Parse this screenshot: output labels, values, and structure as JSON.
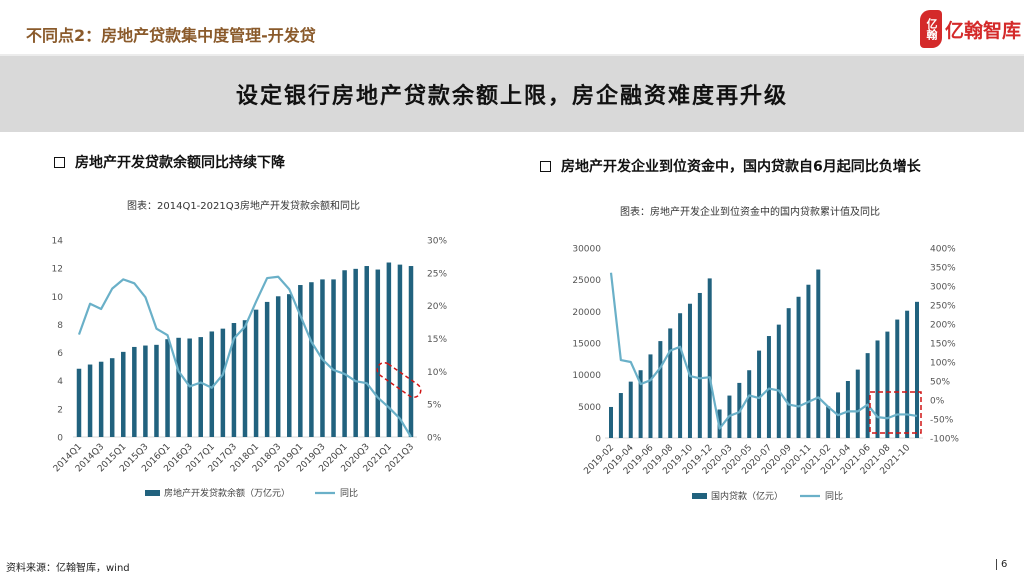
{
  "header": {
    "title": "不同点2：房地产贷款集中度管理-开发贷",
    "logo_text": "亿翰智库",
    "logo_mark": "亿翰"
  },
  "banner": {
    "headline": "设定银行房地产贷款余额上限，房企融资难度再升级"
  },
  "colors": {
    "bar": "#21627e",
    "line": "#6ab0c8",
    "highlight": "#d01515",
    "title": "#8a5a2b"
  },
  "left_section": {
    "heading": "房地产开发贷款余额同比持续下降",
    "caption": "图表：2014Q1-2021Q3房地产开发贷款余额和同比"
  },
  "right_section": {
    "heading": "房地产开发企业到位资金中，国内贷款自6月起同比负增长",
    "caption": "图表：房地产开发企业到位资金中的国内贷款累计值及同比"
  },
  "footer": {
    "source": "资料来源：亿翰智库，wind",
    "page": "6"
  },
  "chart_data": [
    {
      "type": "bar+line",
      "categories": [
        "2014Q1",
        "2014Q2",
        "2014Q3",
        "2014Q4",
        "2015Q1",
        "2015Q2",
        "2015Q3",
        "2015Q4",
        "2016Q1",
        "2016Q2",
        "2016Q3",
        "2016Q4",
        "2017Q1",
        "2017Q2",
        "2017Q3",
        "2017Q4",
        "2018Q1",
        "2018Q2",
        "2018Q3",
        "2018Q4",
        "2019Q1",
        "2019Q2",
        "2019Q3",
        "2019Q4",
        "2020Q1",
        "2020Q2",
        "2020Q3",
        "2020Q4",
        "2021Q1",
        "2021Q2",
        "2021Q3"
      ],
      "tick_labels": [
        "2014Q1",
        "2014Q3",
        "2015Q1",
        "2015Q3",
        "2016Q1",
        "2016Q3",
        "2017Q1",
        "2017Q3",
        "2018Q1",
        "2018Q3",
        "2019Q1",
        "2019Q3",
        "2020Q1",
        "2020Q3",
        "2021Q1",
        "2021Q3"
      ],
      "series": [
        {
          "name": "房地产开发贷款余额（万亿元）",
          "type": "bar",
          "axis": "left",
          "values": [
            4.85,
            5.15,
            5.35,
            5.6,
            6.05,
            6.4,
            6.5,
            6.55,
            6.95,
            7.05,
            7.0,
            7.1,
            7.5,
            7.7,
            8.1,
            8.3,
            9.05,
            9.6,
            10.0,
            10.15,
            10.8,
            11.0,
            11.2,
            11.2,
            11.85,
            11.95,
            12.15,
            11.9,
            12.4,
            12.25,
            12.15
          ]
        },
        {
          "name": "同比",
          "type": "line",
          "axis": "right",
          "unit": "%",
          "values": [
            15.6,
            20.3,
            19.5,
            22.6,
            24.0,
            23.4,
            21.3,
            16.5,
            15.5,
            10.0,
            7.7,
            8.3,
            7.5,
            9.5,
            15.0,
            16.8,
            20.6,
            24.2,
            24.4,
            22.5,
            18.5,
            14.5,
            11.8,
            10.2,
            9.6,
            8.5,
            8.2,
            6.0,
            4.5,
            2.8,
            0.0
          ]
        }
      ],
      "y_left": {
        "min": 0,
        "max": 14,
        "ticks": [
          "0",
          "2",
          "4",
          "6",
          "8",
          "10",
          "12",
          "14"
        ]
      },
      "y_right": {
        "min": 0,
        "max": 30,
        "ticks": [
          "0%",
          "5%",
          "10%",
          "15%",
          "20%",
          "25%",
          "30%"
        ]
      },
      "highlight": "2020Q4-2021Q3 line segment",
      "legend": "bottom",
      "grid": false
    },
    {
      "type": "bar+line",
      "categories": [
        "2019-02",
        "2019-03",
        "2019-04",
        "2019-05",
        "2019-06",
        "2019-07",
        "2019-08",
        "2019-09",
        "2019-10",
        "2019-11",
        "2019-12",
        "2020-02",
        "2020-03",
        "2020-04",
        "2020-05",
        "2020-06",
        "2020-07",
        "2020-08",
        "2020-09",
        "2020-10",
        "2020-11",
        "2020-12",
        "2021-02",
        "2021-03",
        "2021-04",
        "2021-05",
        "2021-06",
        "2021-07",
        "2021-08",
        "2021-09",
        "2021-10",
        "2021-11"
      ],
      "tick_labels": [
        "2019-02",
        "2019-04",
        "2019-06",
        "2019-08",
        "2019-10",
        "2019-12",
        "2020-03",
        "2020-05",
        "2020-07",
        "2020-09",
        "2020-11",
        "2021-02",
        "2021-04",
        "2021-06",
        "2021-08",
        "2021-10"
      ],
      "series": [
        {
          "name": "国内贷款（亿元）",
          "type": "bar",
          "axis": "left",
          "values": [
            4900,
            7100,
            8900,
            10700,
            13200,
            15300,
            17300,
            19700,
            21200,
            22900,
            25200,
            4500,
            6700,
            8700,
            10700,
            13800,
            16100,
            17900,
            20500,
            22300,
            24200,
            26600,
            5000,
            7200,
            9000,
            10800,
            13400,
            15400,
            16800,
            18700,
            20100,
            21500
          ]
        },
        {
          "name": "同比",
          "type": "line",
          "axis": "right",
          "unit": "%",
          "values": [
            335,
            105,
            100,
            42,
            52,
            85,
            130,
            140,
            63,
            57,
            60,
            -75,
            -42,
            -32,
            12,
            5,
            30,
            25,
            -12,
            -17,
            -5,
            7,
            -18,
            -40,
            -30,
            -30,
            -12,
            -45,
            -48,
            -38,
            -38,
            -42
          ]
        }
      ],
      "y_left": {
        "min": 0,
        "max": 30000,
        "ticks": [
          "0",
          "5000",
          "10000",
          "15000",
          "20000",
          "25000",
          "30000"
        ]
      },
      "y_right": {
        "min": -100,
        "max": 400,
        "ticks": [
          "-100%",
          "-50%",
          "0%",
          "50%",
          "100%",
          "150%",
          "200%",
          "250%",
          "300%",
          "350%",
          "400%"
        ]
      },
      "highlight": "2021-07 to 2021-11",
      "legend": "bottom",
      "grid": false
    }
  ]
}
